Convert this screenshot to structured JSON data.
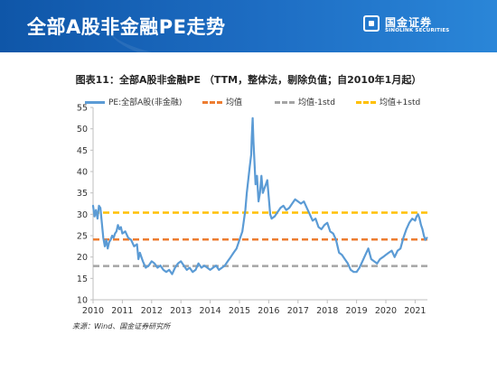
{
  "header": {
    "title": "全部A股非金融PE走势",
    "logo_cn": "国金证券",
    "logo_en": "SINOLINK SECURITIES",
    "background_color": "#1565c0"
  },
  "source": "来源：Wind、国金证券研究所",
  "chart_data": {
    "type": "line",
    "title": "图表11：全部A股非金融PE （TTM，整体法，剔除负值；自2010年1月起）",
    "xlabel": "",
    "ylabel": "",
    "xlim": [
      2010,
      2021.42
    ],
    "ylim": [
      10,
      55
    ],
    "y_ticks": [
      10,
      15,
      20,
      25,
      30,
      35,
      40,
      45,
      50,
      55
    ],
    "x_ticks": [
      "2010",
      "2011",
      "2012",
      "2013",
      "2014",
      "2015",
      "2016",
      "2017",
      "2018",
      "2019",
      "2020",
      "2021"
    ],
    "grid": false,
    "legend_position": "top",
    "series": [
      {
        "name": "PE:全部A股(非金融)",
        "color": "#5b9bd5",
        "style": "solid",
        "x": [
          2010.0,
          2010.05,
          2010.1,
          2010.15,
          2010.2,
          2010.25,
          2010.3,
          2010.35,
          2010.4,
          2010.45,
          2010.5,
          2010.55,
          2010.6,
          2010.65,
          2010.7,
          2010.75,
          2010.8,
          2010.85,
          2010.9,
          2010.95,
          2011.0,
          2011.1,
          2011.2,
          2011.3,
          2011.4,
          2011.5,
          2011.55,
          2011.6,
          2011.7,
          2011.8,
          2011.9,
          2012.0,
          2012.1,
          2012.2,
          2012.3,
          2012.4,
          2012.5,
          2012.6,
          2012.7,
          2012.8,
          2012.9,
          2013.0,
          2013.1,
          2013.2,
          2013.3,
          2013.4,
          2013.5,
          2013.6,
          2013.7,
          2013.8,
          2013.9,
          2014.0,
          2014.1,
          2014.2,
          2014.3,
          2014.4,
          2014.5,
          2014.6,
          2014.7,
          2014.8,
          2014.9,
          2015.0,
          2015.1,
          2015.2,
          2015.25,
          2015.3,
          2015.35,
          2015.4,
          2015.42,
          2015.45,
          2015.48,
          2015.5,
          2015.55,
          2015.6,
          2015.65,
          2015.7,
          2015.75,
          2015.8,
          2015.85,
          2015.9,
          2015.95,
          2016.0,
          2016.05,
          2016.1,
          2016.2,
          2016.3,
          2016.4,
          2016.5,
          2016.6,
          2016.7,
          2016.8,
          2016.9,
          2017.0,
          2017.1,
          2017.2,
          2017.3,
          2017.4,
          2017.5,
          2017.6,
          2017.7,
          2017.8,
          2017.9,
          2018.0,
          2018.1,
          2018.2,
          2018.3,
          2018.4,
          2018.5,
          2018.6,
          2018.7,
          2018.8,
          2018.9,
          2019.0,
          2019.1,
          2019.2,
          2019.3,
          2019.4,
          2019.5,
          2019.6,
          2019.7,
          2019.8,
          2019.9,
          2020.0,
          2020.1,
          2020.2,
          2020.3,
          2020.4,
          2020.5,
          2020.6,
          2020.7,
          2020.8,
          2020.9,
          2021.0,
          2021.05,
          2021.1,
          2021.15,
          2021.2,
          2021.25,
          2021.3,
          2021.35,
          2021.4
        ],
        "values": [
          32.0,
          29.5,
          31.0,
          29.0,
          32.0,
          31.5,
          28.0,
          24.5,
          22.5,
          24.0,
          22.0,
          23.5,
          24.0,
          25.0,
          24.5,
          25.5,
          26.0,
          27.5,
          26.5,
          27.0,
          25.5,
          26.0,
          24.5,
          24.0,
          22.5,
          23.0,
          19.5,
          21.0,
          19.0,
          17.5,
          18.0,
          19.0,
          18.5,
          17.5,
          18.0,
          17.0,
          16.5,
          17.0,
          16.0,
          17.5,
          18.5,
          19.0,
          18.0,
          17.0,
          17.5,
          16.5,
          17.0,
          18.5,
          17.5,
          18.0,
          17.5,
          17.0,
          17.5,
          18.0,
          17.0,
          17.5,
          18.0,
          19.0,
          20.0,
          21.0,
          22.0,
          24.0,
          26.0,
          31.0,
          35.0,
          38.0,
          41.0,
          44.0,
          48.0,
          52.5,
          47.0,
          44.0,
          37.0,
          39.0,
          33.0,
          35.0,
          39.0,
          35.0,
          36.0,
          37.0,
          38.0,
          34.0,
          30.0,
          29.0,
          29.5,
          30.5,
          31.5,
          32.0,
          31.0,
          31.5,
          32.5,
          33.5,
          33.0,
          32.5,
          33.0,
          31.5,
          30.0,
          28.5,
          29.0,
          27.0,
          26.5,
          27.5,
          28.0,
          26.0,
          25.5,
          24.0,
          21.0,
          20.5,
          19.5,
          18.5,
          17.0,
          16.5,
          16.5,
          17.5,
          19.0,
          20.5,
          22.0,
          19.5,
          19.0,
          18.5,
          19.5,
          20.0,
          20.5,
          21.0,
          21.5,
          20.0,
          21.5,
          22.0,
          24.5,
          26.5,
          28.0,
          29.0,
          28.5,
          29.5,
          30.0,
          29.0,
          27.5,
          26.5,
          25.0,
          24.0,
          24.5
        ]
      },
      {
        "name": "均值",
        "color": "#ed7d31",
        "style": "dashed",
        "constant": 24.1
      },
      {
        "name": "均值-1std",
        "color": "#a5a5a5",
        "style": "dashed",
        "constant": 17.9
      },
      {
        "name": "均值+1std",
        "color": "#ffc000",
        "style": "dashed",
        "constant": 30.4
      }
    ]
  }
}
